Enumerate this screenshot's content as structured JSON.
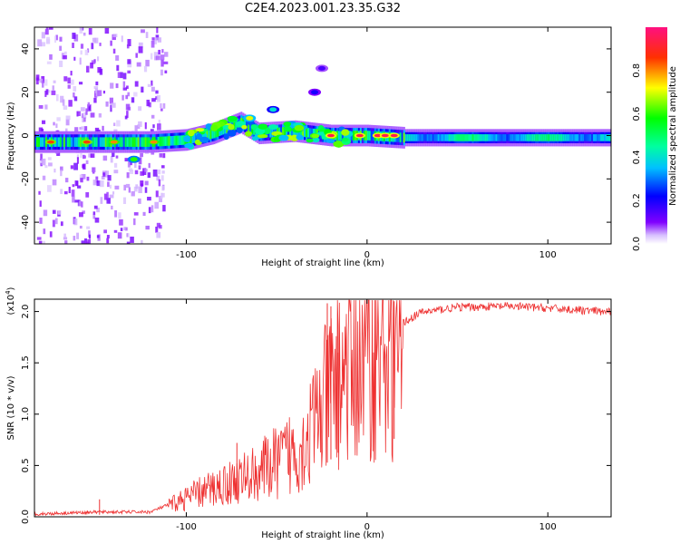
{
  "figure_title": "C2E4.2023.001.23.35.G32",
  "chart_data": [
    {
      "type": "heatmap",
      "xlabel": "Height of straight line (km)",
      "ylabel": "Frequency (Hz)",
      "xlim": [
        -184,
        135
      ],
      "ylim": [
        -50,
        50
      ],
      "x_ticks": [
        -100,
        0,
        100
      ],
      "y_ticks": [
        -40,
        -20,
        0,
        20,
        40
      ],
      "colorbar": {
        "label": "Normalized spectral amplitude",
        "range": [
          0.0,
          1.0
        ],
        "ticks": [
          "0.0",
          "0.2",
          "0.4",
          "0.6",
          "0.8"
        ],
        "tick_values": [
          0.0,
          0.2,
          0.4,
          0.6,
          0.8
        ]
      },
      "band_center_hz": [
        {
          "x": -184,
          "y": -3
        },
        {
          "x": -120,
          "y": -3
        },
        {
          "x": -100,
          "y": -2
        },
        {
          "x": -85,
          "y": 1
        },
        {
          "x": -70,
          "y": 6
        },
        {
          "x": -60,
          "y": 1
        },
        {
          "x": -40,
          "y": 2
        },
        {
          "x": -20,
          "y": 0
        },
        {
          "x": 0,
          "y": 0
        },
        {
          "x": 20,
          "y": -1
        },
        {
          "x": 135,
          "y": -1
        }
      ],
      "features": [
        {
          "x": -129,
          "y": -11,
          "amplitude": 0.6
        },
        {
          "x": -52,
          "y": 12,
          "amplitude": 0.4
        },
        {
          "x": -29,
          "y": 20,
          "amplitude": 0.2
        },
        {
          "x": -25,
          "y": 31,
          "amplitude": 0.15
        },
        {
          "x": -65,
          "y": 8,
          "amplitude": 0.7
        }
      ],
      "peaks": [
        {
          "x": -175,
          "y": -3,
          "amplitude": 0.85
        },
        {
          "x": -155,
          "y": -3,
          "amplitude": 0.85
        },
        {
          "x": -140,
          "y": -3,
          "amplitude": 0.8
        },
        {
          "x": -118,
          "y": -3,
          "amplitude": 0.8
        },
        {
          "x": -20,
          "y": 0,
          "amplitude": 0.95
        },
        {
          "x": -4,
          "y": 0,
          "amplitude": 0.95
        },
        {
          "x": 6,
          "y": 0,
          "amplitude": 0.95
        },
        {
          "x": 10,
          "y": 0,
          "amplitude": 0.95
        },
        {
          "x": 15,
          "y": 0,
          "amplitude": 0.95
        }
      ]
    },
    {
      "type": "line",
      "xlabel": "Height of straight line (km)",
      "ylabel": "SNR (10 * v/v)",
      "y_multiplier": "(x10",
      "y_multiplier_exp": "4",
      "y_multiplier_close": ")",
      "xlim": [
        -184,
        135
      ],
      "ylim": [
        0,
        2.12
      ],
      "x_ticks": [
        -100,
        0,
        100
      ],
      "y_ticks": [
        0.0,
        0.5,
        1.0,
        1.5,
        2.0
      ],
      "y_tick_labels": [
        "0.0",
        "0.5",
        "1.0",
        "1.5",
        "2.0"
      ],
      "color": "#ee3030",
      "envelope": [
        {
          "x": -184,
          "y": 0.03
        },
        {
          "x": -150,
          "y": 0.05
        },
        {
          "x": -120,
          "y": 0.05
        },
        {
          "x": -110,
          "y": 0.12
        },
        {
          "x": -95,
          "y": 0.25
        },
        {
          "x": -80,
          "y": 0.35
        },
        {
          "x": -65,
          "y": 0.45
        },
        {
          "x": -50,
          "y": 0.6
        },
        {
          "x": -35,
          "y": 0.8
        },
        {
          "x": -25,
          "y": 1.2
        },
        {
          "x": -15,
          "y": 1.6
        },
        {
          "x": 0,
          "y": 1.8
        },
        {
          "x": 10,
          "y": 1.9
        },
        {
          "x": 20,
          "y": 1.9
        },
        {
          "x": 30,
          "y": 2.0
        },
        {
          "x": 50,
          "y": 2.05
        },
        {
          "x": 80,
          "y": 2.06
        },
        {
          "x": 110,
          "y": 2.03
        },
        {
          "x": 135,
          "y": 2.0
        }
      ],
      "spikes": [
        {
          "x": -148,
          "y": 0.17
        },
        {
          "x": -72,
          "y": 0.72
        },
        {
          "x": -22,
          "y": 2.08
        },
        {
          "x": -20,
          "y": 2.05
        },
        {
          "x": -16,
          "y": 1.6
        },
        {
          "x": 15,
          "y": 2.1
        }
      ]
    }
  ]
}
